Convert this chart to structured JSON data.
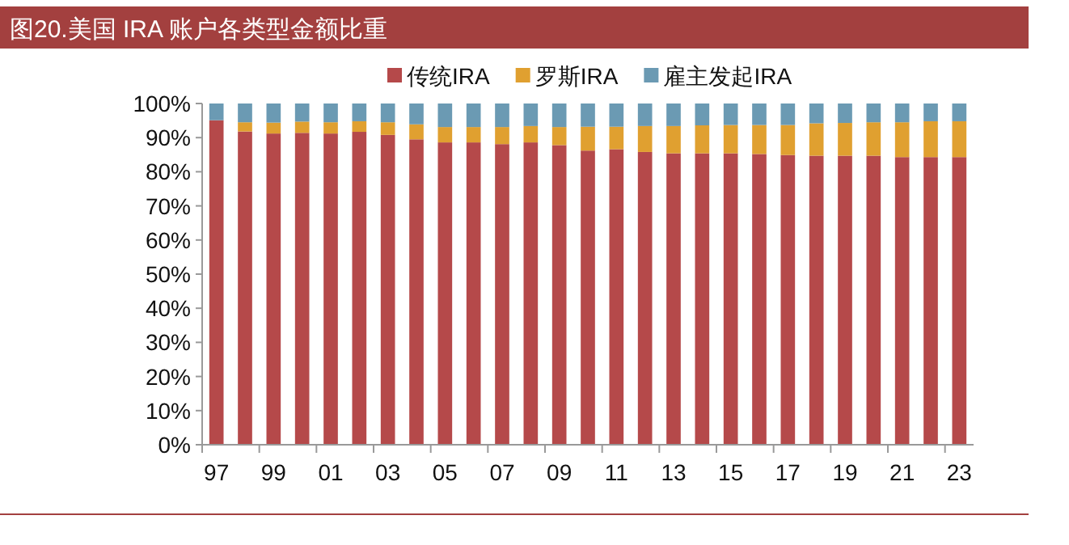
{
  "chart_data": {
    "type": "bar",
    "title": "图20.美国 IRA 账户各类型金额比重",
    "stacked": true,
    "categories": [
      "97",
      null,
      "99",
      null,
      "01",
      null,
      "03",
      null,
      "05",
      null,
      "07",
      null,
      "09",
      null,
      "11",
      null,
      "13",
      null,
      "15",
      null,
      "17",
      null,
      "19",
      null,
      "21",
      null,
      "23"
    ],
    "series": [
      {
        "name": "传统IRA",
        "color": "#b5494a",
        "values": [
          95.1,
          91.8,
          91.2,
          91.4,
          91.2,
          91.7,
          90.8,
          89.5,
          88.6,
          88.6,
          88.1,
          88.6,
          87.8,
          86.2,
          86.6,
          85.8,
          85.4,
          85.4,
          85.4,
          85.2,
          84.9,
          84.7,
          84.7,
          84.7,
          84.3,
          84.3,
          84.3
        ]
      },
      {
        "name": "罗斯IRA",
        "color": "#e0a030",
        "values": [
          0,
          2.7,
          3.2,
          3.3,
          3.3,
          3.1,
          3.7,
          4.4,
          4.5,
          4.5,
          5.0,
          4.8,
          5.3,
          7.0,
          6.6,
          7.6,
          8.0,
          8.2,
          8.3,
          8.5,
          8.8,
          9.5,
          9.6,
          9.8,
          10.2,
          10.5,
          10.5
        ]
      },
      {
        "name": "雇主发起IRA",
        "color": "#6b9ab3",
        "values": [
          4.9,
          5.5,
          5.6,
          5.3,
          5.5,
          5.2,
          5.5,
          6.1,
          6.9,
          6.9,
          6.9,
          6.6,
          6.9,
          6.8,
          6.8,
          6.6,
          6.6,
          6.4,
          6.3,
          6.3,
          6.3,
          5.8,
          5.7,
          5.5,
          5.5,
          5.2,
          5.2
        ]
      }
    ],
    "ylim": [
      0,
      100
    ],
    "yticks": [
      {
        "value": 0,
        "label": "0%"
      },
      {
        "value": 10,
        "label": "10%"
      },
      {
        "value": 20,
        "label": "20%"
      },
      {
        "value": 30,
        "label": "30%"
      },
      {
        "value": 40,
        "label": "40%"
      },
      {
        "value": 50,
        "label": "50%"
      },
      {
        "value": 60,
        "label": "60%"
      },
      {
        "value": 70,
        "label": "70%"
      },
      {
        "value": 80,
        "label": "80%"
      },
      {
        "value": 90,
        "label": "90%"
      },
      {
        "value": 100,
        "label": "100%"
      }
    ],
    "legend": "top",
    "grid": false
  }
}
